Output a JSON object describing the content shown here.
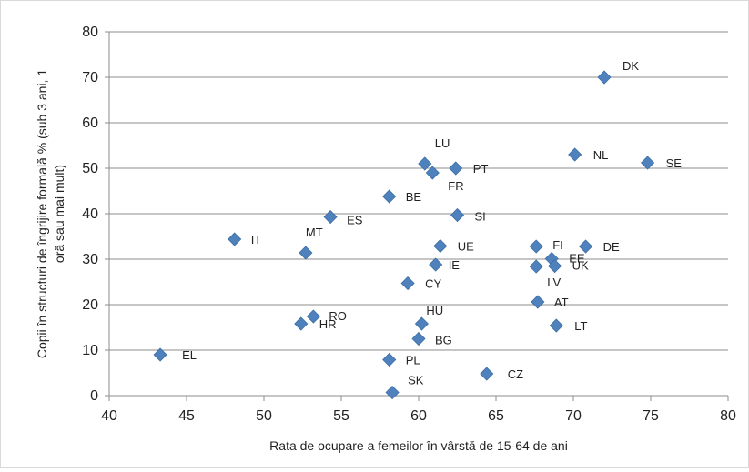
{
  "chart_data": {
    "type": "scatter",
    "title": "",
    "xlabel": "Rata de ocupare a femeilor în vârstă de 15-64 de ani",
    "ylabel_lines": [
      "Copii în structuri de îngrijire formală % (sub 3 ani, 1",
      "oră sau mai mult)"
    ],
    "xlim": [
      40,
      80
    ],
    "ylim": [
      0,
      80
    ],
    "xticks": [
      40,
      45,
      50,
      55,
      60,
      65,
      70,
      75,
      80
    ],
    "yticks": [
      0,
      10,
      20,
      30,
      40,
      50,
      60,
      70,
      80
    ],
    "grid": "horizontal",
    "marker": "diamond",
    "color": "#4f81bd",
    "points": [
      {
        "label": "DK",
        "x": 72.0,
        "y": 70.0
      },
      {
        "label": "NL",
        "x": 70.1,
        "y": 53.0
      },
      {
        "label": "SE",
        "x": 74.8,
        "y": 51.2
      },
      {
        "label": "LU",
        "x": 60.4,
        "y": 51.0
      },
      {
        "label": "PT",
        "x": 62.4,
        "y": 50.0
      },
      {
        "label": "FR",
        "x": 60.9,
        "y": 49.0
      },
      {
        "label": "BE",
        "x": 58.1,
        "y": 43.8
      },
      {
        "label": "ES",
        "x": 54.3,
        "y": 39.3
      },
      {
        "label": "SI",
        "x": 62.5,
        "y": 39.7
      },
      {
        "label": "IT",
        "x": 48.1,
        "y": 34.4
      },
      {
        "label": "MT",
        "x": 52.7,
        "y": 31.4
      },
      {
        "label": "UE",
        "x": 61.4,
        "y": 32.9
      },
      {
        "label": "FI",
        "x": 67.6,
        "y": 32.8
      },
      {
        "label": "DE",
        "x": 70.8,
        "y": 32.8
      },
      {
        "label": "EE",
        "x": 68.6,
        "y": 30.1
      },
      {
        "label": "UK",
        "x": 68.8,
        "y": 28.5
      },
      {
        "label": "LV",
        "x": 67.6,
        "y": 28.4
      },
      {
        "label": "IE",
        "x": 61.1,
        "y": 28.8
      },
      {
        "label": "CY",
        "x": 59.3,
        "y": 24.7
      },
      {
        "label": "AT",
        "x": 67.7,
        "y": 20.6
      },
      {
        "label": "RO",
        "x": 53.2,
        "y": 17.4
      },
      {
        "label": "HR",
        "x": 52.4,
        "y": 15.8
      },
      {
        "label": "HU",
        "x": 60.2,
        "y": 15.8
      },
      {
        "label": "LT",
        "x": 68.9,
        "y": 15.4
      },
      {
        "label": "BG",
        "x": 60.0,
        "y": 12.5
      },
      {
        "label": "EL",
        "x": 43.3,
        "y": 9.0
      },
      {
        "label": "PL",
        "x": 58.1,
        "y": 7.9
      },
      {
        "label": "CZ",
        "x": 64.4,
        "y": 4.8
      },
      {
        "label": "SK",
        "x": 58.3,
        "y": 0.7
      }
    ]
  }
}
